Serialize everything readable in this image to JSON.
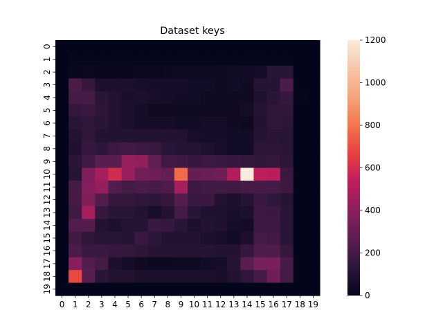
{
  "chart_data": {
    "type": "heatmap",
    "title": "Dataset keys",
    "xlabel": "",
    "ylabel": "",
    "x_categories": [
      "0",
      "1",
      "2",
      "3",
      "4",
      "5",
      "6",
      "7",
      "8",
      "9",
      "10",
      "11",
      "12",
      "13",
      "14",
      "15",
      "16",
      "17",
      "18",
      "19"
    ],
    "y_categories": [
      "0",
      "1",
      "2",
      "3",
      "4",
      "5",
      "6",
      "7",
      "8",
      "9",
      "10",
      "11",
      "12",
      "13",
      "14",
      "15",
      "16",
      "17",
      "18",
      "19"
    ],
    "values": [
      [
        0,
        0,
        0,
        0,
        0,
        0,
        0,
        0,
        0,
        0,
        0,
        0,
        0,
        0,
        0,
        0,
        0,
        0,
        0,
        0
      ],
      [
        0,
        10,
        10,
        10,
        10,
        10,
        10,
        10,
        10,
        10,
        10,
        10,
        10,
        10,
        10,
        10,
        10,
        10,
        0,
        0
      ],
      [
        0,
        20,
        25,
        20,
        20,
        20,
        25,
        25,
        30,
        35,
        35,
        35,
        40,
        45,
        50,
        60,
        120,
        120,
        0,
        0
      ],
      [
        0,
        220,
        160,
        80,
        80,
        80,
        70,
        60,
        60,
        60,
        50,
        50,
        40,
        50,
        40,
        110,
        110,
        220,
        0,
        0
      ],
      [
        0,
        200,
        210,
        120,
        100,
        70,
        80,
        70,
        60,
        50,
        50,
        40,
        40,
        40,
        40,
        90,
        120,
        160,
        10,
        0
      ],
      [
        0,
        150,
        170,
        130,
        100,
        80,
        60,
        40,
        40,
        40,
        40,
        40,
        40,
        40,
        60,
        110,
        140,
        140,
        0,
        0
      ],
      [
        0,
        120,
        140,
        120,
        100,
        80,
        60,
        60,
        60,
        50,
        50,
        60,
        60,
        40,
        30,
        100,
        140,
        130,
        0,
        0
      ],
      [
        0,
        100,
        140,
        100,
        100,
        100,
        100,
        100,
        100,
        100,
        70,
        60,
        60,
        50,
        50,
        110,
        120,
        120,
        0,
        0
      ],
      [
        0,
        90,
        160,
        130,
        180,
        190,
        180,
        170,
        120,
        110,
        110,
        90,
        70,
        50,
        50,
        130,
        130,
        120,
        0,
        0
      ],
      [
        0,
        120,
        190,
        260,
        260,
        430,
        420,
        280,
        190,
        180,
        160,
        180,
        170,
        160,
        150,
        140,
        150,
        130,
        0,
        0
      ],
      [
        0,
        110,
        370,
        470,
        590,
        440,
        330,
        320,
        290,
        770,
        290,
        300,
        320,
        500,
        1200,
        530,
        520,
        170,
        0,
        0
      ],
      [
        0,
        200,
        380,
        420,
        240,
        200,
        220,
        210,
        230,
        470,
        180,
        190,
        190,
        190,
        200,
        210,
        210,
        180,
        0,
        0
      ],
      [
        0,
        210,
        370,
        240,
        150,
        150,
        140,
        130,
        160,
        250,
        170,
        170,
        100,
        80,
        110,
        170,
        140,
        110,
        0,
        0
      ],
      [
        0,
        190,
        470,
        160,
        120,
        120,
        100,
        70,
        100,
        200,
        120,
        90,
        90,
        70,
        80,
        180,
        170,
        120,
        0,
        0
      ],
      [
        0,
        240,
        250,
        100,
        80,
        110,
        110,
        170,
        160,
        120,
        80,
        100,
        90,
        60,
        50,
        180,
        180,
        120,
        0,
        0
      ],
      [
        0,
        190,
        140,
        120,
        120,
        110,
        170,
        130,
        100,
        100,
        100,
        80,
        70,
        50,
        80,
        200,
        190,
        120,
        0,
        0
      ],
      [
        0,
        220,
        170,
        170,
        160,
        150,
        130,
        110,
        110,
        110,
        110,
        110,
        100,
        100,
        160,
        230,
        230,
        150,
        0,
        0
      ],
      [
        0,
        390,
        240,
        200,
        80,
        60,
        40,
        30,
        30,
        40,
        40,
        50,
        60,
        110,
        260,
        340,
        350,
        210,
        0,
        0
      ],
      [
        0,
        690,
        260,
        120,
        100,
        100,
        80,
        80,
        80,
        80,
        80,
        80,
        70,
        100,
        140,
        210,
        320,
        200,
        0,
        0
      ],
      [
        0,
        0,
        0,
        0,
        0,
        0,
        0,
        0,
        0,
        0,
        0,
        0,
        0,
        0,
        0,
        0,
        0,
        0,
        0,
        0
      ]
    ],
    "colorbar": {
      "min": 0,
      "max": 1200,
      "ticks": [
        0,
        200,
        400,
        600,
        800,
        1000,
        1200
      ],
      "tick_labels": [
        "0",
        "200",
        "400",
        "600",
        "800",
        "1000",
        "1200"
      ]
    },
    "colormap": [
      "#03051a",
      "#2d1739",
      "#5b1e51",
      "#8c1f5d",
      "#be1e5c",
      "#e83f3f",
      "#f3764d",
      "#f6a47c",
      "#f7c6a8",
      "#faebdd"
    ]
  }
}
